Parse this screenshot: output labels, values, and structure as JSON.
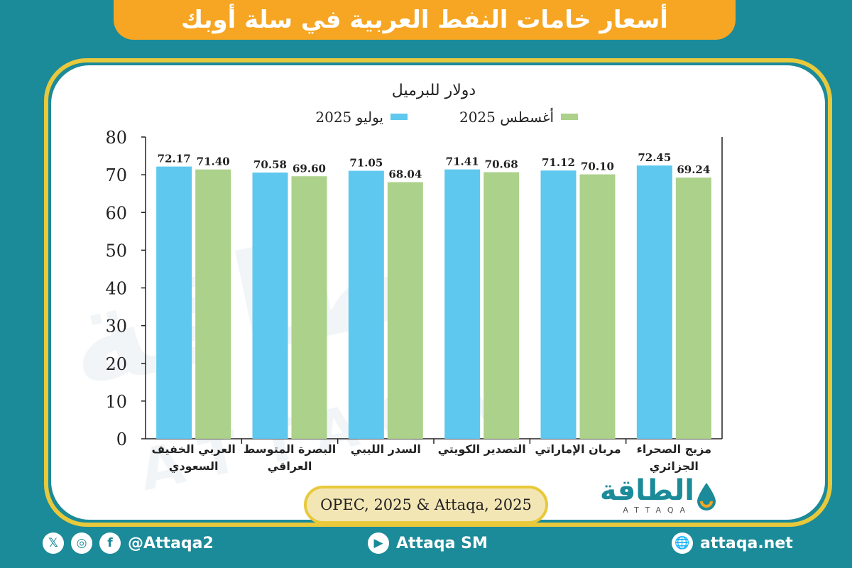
{
  "header": {
    "title": "أسعار خامات النفط العربية في سلة أوبك"
  },
  "chart_data": {
    "type": "bar",
    "title": "دولار للبرميل",
    "categories": [
      [
        "العربي الخفيف",
        "السعودي"
      ],
      [
        "البصرة المتوسط",
        "العراقي"
      ],
      [
        "السدر الليبي"
      ],
      [
        "التصدير الكويتي"
      ],
      [
        "مربان الإماراتي"
      ],
      [
        "مزيج الصحراء",
        "الجزائري"
      ]
    ],
    "series": [
      {
        "name": "يوليو 2025",
        "color": "#5ec8ef",
        "values": [
          72.17,
          70.58,
          71.05,
          71.41,
          71.12,
          72.45
        ]
      },
      {
        "name": "أغسطس 2025",
        "color": "#acd18a",
        "values": [
          71.4,
          69.6,
          68.04,
          70.68,
          70.1,
          69.24
        ]
      }
    ],
    "value_labels": [
      [
        "72.17",
        "70.58",
        "71.05",
        "71.41",
        "71.12",
        "72.45"
      ],
      [
        "71.40",
        "69.60",
        "68.04",
        "70.68",
        "70.10",
        "69.24"
      ]
    ],
    "ylim": [
      0,
      80
    ],
    "yticks": [
      0,
      10,
      20,
      30,
      40,
      50,
      60,
      70,
      80
    ],
    "legend": "top",
    "grid": false
  },
  "source": "OPEC, 2025 & Attaqa, 2025",
  "logo": {
    "arabic": "الطاقة",
    "latin": "ATTAQA"
  },
  "footer": {
    "social": {
      "x_icon": "𝕏",
      "instagram_icon": "◎",
      "facebook_icon": "f",
      "handle": "@Attaqa2"
    },
    "youtube": {
      "icon": "▶",
      "label": "Attaqa SM"
    },
    "web": {
      "icon": "🌐",
      "label": "attaqa.net"
    }
  }
}
